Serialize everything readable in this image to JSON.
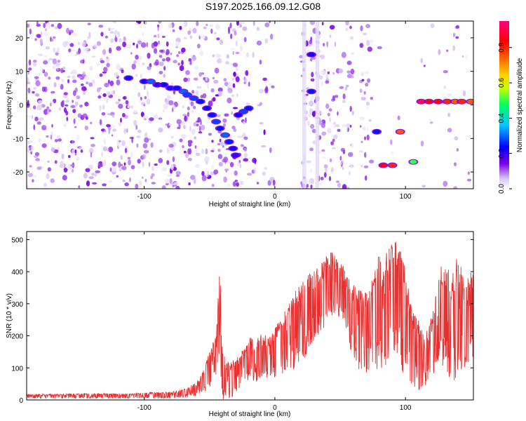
{
  "title": "S197.2025.166.09.12.G08",
  "chart_data": [
    {
      "type": "heatmap",
      "xlabel": "Height of straight line (km)",
      "ylabel": "Frequency (Hz)",
      "xlim": [
        -190,
        152
      ],
      "ylim": [
        -25,
        25
      ],
      "x_ticks": [
        -100,
        0,
        100
      ],
      "y_ticks": [
        -20,
        -10,
        0,
        10,
        20
      ],
      "colorbar": {
        "label": "Normalized spectral amplitude",
        "range": [
          0,
          0.95
        ],
        "ticks": [
          0.0,
          0.2,
          0.4,
          0.6,
          0.8
        ],
        "tick_labels": [
          "0.0",
          "0.2",
          "0.4",
          "0.6",
          "0.8"
        ],
        "colors": [
          "#ffffff",
          "#b8a0e8",
          "#7a00e6",
          "#0000ff",
          "#00c8ff",
          "#00ff60",
          "#c8ff00",
          "#ffd000",
          "#ff6000",
          "#ff0000",
          "#ff0080"
        ]
      },
      "blank_gaps_x": [
        [
          0,
          20
        ],
        [
          60,
          65
        ],
        [
          75,
          80
        ],
        [
          100,
          110
        ]
      ],
      "ridge": [
        {
          "x": -112,
          "y": 8,
          "a": 0.25
        },
        {
          "x": -100,
          "y": 7,
          "a": 0.25
        },
        {
          "x": -95,
          "y": 7,
          "a": 0.3
        },
        {
          "x": -90,
          "y": 6,
          "a": 0.2
        },
        {
          "x": -85,
          "y": 6,
          "a": 0.22
        },
        {
          "x": -80,
          "y": 5,
          "a": 0.25
        },
        {
          "x": -75,
          "y": 5,
          "a": 0.25
        },
        {
          "x": -70,
          "y": 4,
          "a": 0.3
        },
        {
          "x": -67,
          "y": 3,
          "a": 0.28
        },
        {
          "x": -62,
          "y": 2,
          "a": 0.28
        },
        {
          "x": -57,
          "y": 1,
          "a": 0.25
        },
        {
          "x": -52,
          "y": -1,
          "a": 0.22
        },
        {
          "x": -48,
          "y": -3,
          "a": 0.25
        },
        {
          "x": -45,
          "y": -5,
          "a": 0.28
        },
        {
          "x": -42,
          "y": -7,
          "a": 0.25
        },
        {
          "x": -38,
          "y": -9,
          "a": 0.3
        },
        {
          "x": -35,
          "y": -11,
          "a": 0.25
        },
        {
          "x": -32,
          "y": -13,
          "a": 0.22
        },
        {
          "x": -30,
          "y": -15,
          "a": 0.2
        },
        {
          "x": -28,
          "y": -3,
          "a": 0.22
        },
        {
          "x": -24,
          "y": -2,
          "a": 0.28
        },
        {
          "x": -20,
          "y": -1,
          "a": 0.25
        },
        {
          "x": 28,
          "y": 15,
          "a": 0.22
        },
        {
          "x": 28,
          "y": 4,
          "a": 0.25
        },
        {
          "x": 78,
          "y": -8,
          "a": 0.25
        },
        {
          "x": 83,
          "y": -18,
          "a": 0.85
        },
        {
          "x": 90,
          "y": -18,
          "a": 0.8
        },
        {
          "x": 96,
          "y": -8,
          "a": 0.75
        },
        {
          "x": 106,
          "y": -17,
          "a": 0.5
        },
        {
          "x": 112,
          "y": 1,
          "a": 0.92
        },
        {
          "x": 118,
          "y": 1,
          "a": 0.85
        },
        {
          "x": 125,
          "y": 1,
          "a": 0.85
        },
        {
          "x": 132,
          "y": 1,
          "a": 0.8
        },
        {
          "x": 138,
          "y": 1,
          "a": 0.75
        },
        {
          "x": 143,
          "y": 1,
          "a": 0.8
        },
        {
          "x": 150,
          "y": 1,
          "a": 0.75
        }
      ]
    },
    {
      "type": "line",
      "xlabel": "Height of straight line (km)",
      "ylabel": "SNR (10 * v/v)",
      "xlim": [
        -190,
        152
      ],
      "ylim": [
        0,
        525
      ],
      "x_ticks": [
        -100,
        0,
        100
      ],
      "y_ticks": [
        0,
        100,
        200,
        300,
        400,
        500
      ],
      "color": "#e83030",
      "series": [
        {
          "x": [
            -190,
            -170,
            -150,
            -130,
            -110,
            -90,
            -80,
            -70,
            -60,
            -55,
            -50,
            -45,
            -42,
            -40,
            -37,
            -35,
            -30,
            -25,
            -20,
            -15,
            -10,
            -5,
            0,
            5,
            10,
            15,
            20,
            25,
            30,
            35,
            40,
            45,
            50,
            55,
            60,
            65,
            70,
            75,
            80,
            83,
            86,
            90,
            95,
            100,
            105,
            110,
            115,
            120,
            125,
            130,
            135,
            140,
            145,
            150
          ],
          "y": [
            18,
            18,
            20,
            20,
            20,
            25,
            25,
            35,
            55,
            90,
            150,
            210,
            420,
            160,
            120,
            120,
            130,
            160,
            200,
            190,
            215,
            200,
            230,
            265,
            300,
            340,
            360,
            390,
            410,
            420,
            450,
            470,
            440,
            400,
            360,
            340,
            350,
            400,
            460,
            440,
            470,
            500,
            490,
            430,
            300,
            250,
            200,
            260,
            420,
            450,
            380,
            460,
            380,
            400
          ],
          "min": [
            5,
            5,
            5,
            5,
            5,
            5,
            5,
            8,
            10,
            20,
            40,
            60,
            80,
            0,
            0,
            5,
            10,
            40,
            50,
            55,
            60,
            50,
            70,
            60,
            70,
            100,
            120,
            140,
            160,
            200,
            230,
            250,
            240,
            200,
            130,
            90,
            70,
            110,
            80,
            50,
            60,
            160,
            120,
            60,
            40,
            30,
            40,
            60,
            120,
            100,
            60,
            60,
            90,
            120
          ]
        }
      ]
    }
  ]
}
